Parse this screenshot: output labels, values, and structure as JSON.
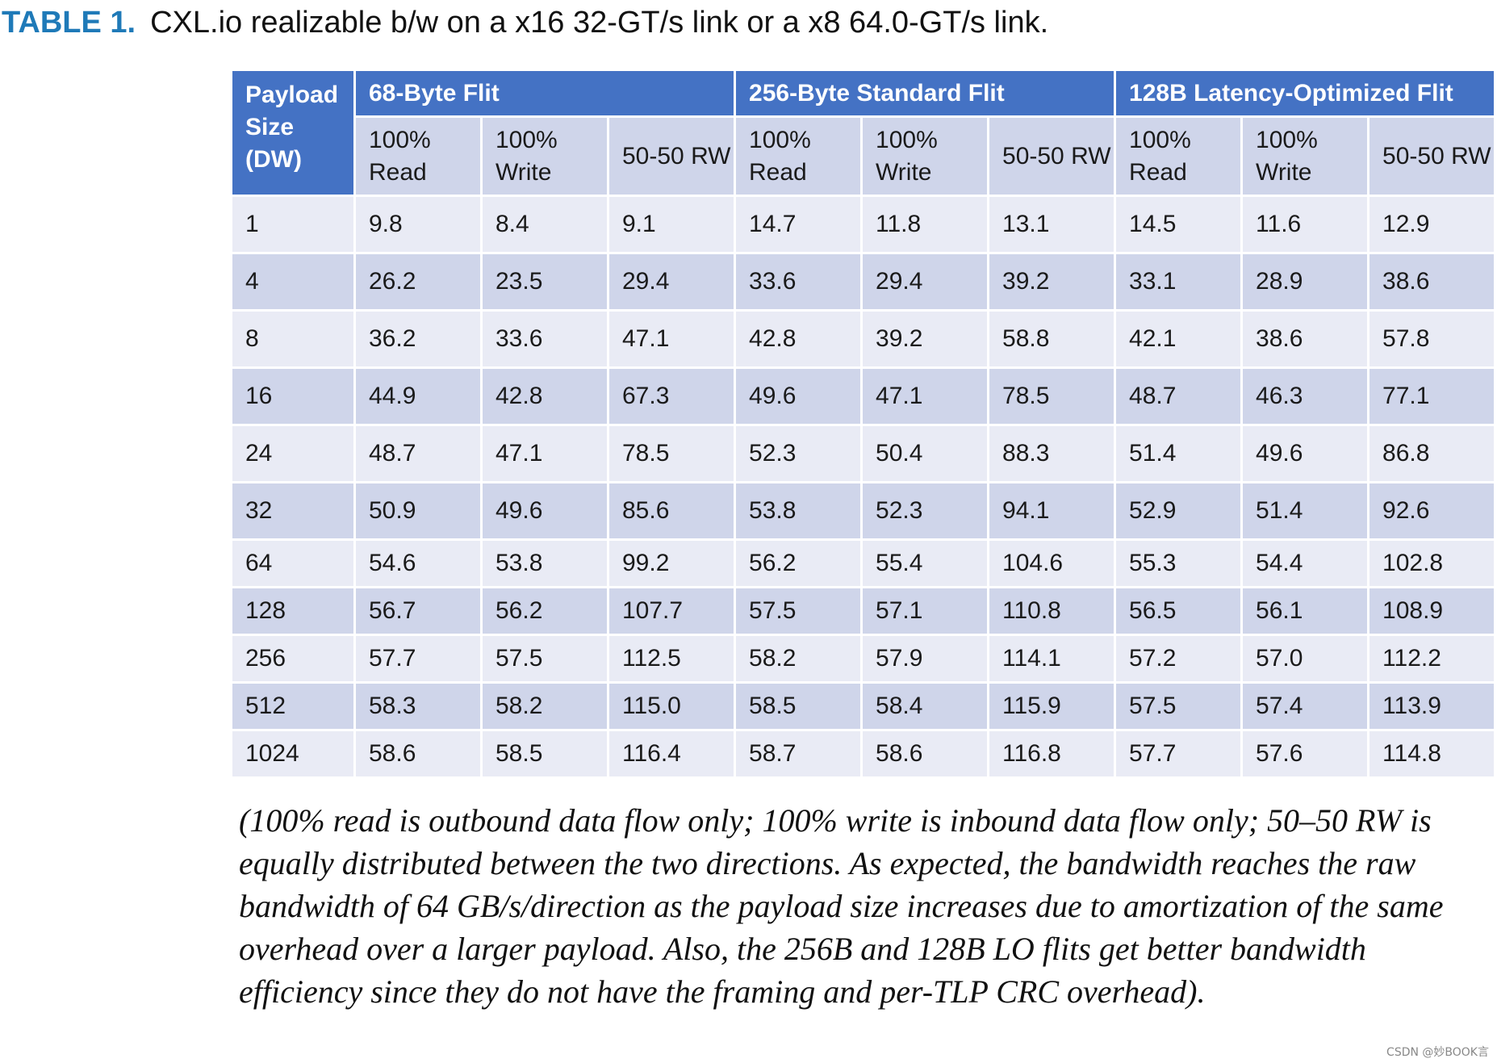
{
  "caption": {
    "label": "TABLE 1.",
    "text": "CXL.io realizable b/w on a x16 32-GT/s link or a x8 64.0-GT/s link."
  },
  "table": {
    "corner_header": "Payload Size (DW)",
    "groups": [
      "68-Byte Flit",
      "256-Byte Standard Flit",
      "128B Latency-Optimized Flit"
    ],
    "subheaders": [
      "100% Read",
      "100% Write",
      "50-50 RW"
    ],
    "rows": [
      [
        "1",
        "9.8",
        "8.4",
        "9.1",
        "14.7",
        "11.8",
        "13.1",
        "14.5",
        "11.6",
        "12.9"
      ],
      [
        "4",
        "26.2",
        "23.5",
        "29.4",
        "33.6",
        "29.4",
        "39.2",
        "33.1",
        "28.9",
        "38.6"
      ],
      [
        "8",
        "36.2",
        "33.6",
        "47.1",
        "42.8",
        "39.2",
        "58.8",
        "42.1",
        "38.6",
        "57.8"
      ],
      [
        "16",
        "44.9",
        "42.8",
        "67.3",
        "49.6",
        "47.1",
        "78.5",
        "48.7",
        "46.3",
        "77.1"
      ],
      [
        "24",
        "48.7",
        "47.1",
        "78.5",
        "52.3",
        "50.4",
        "88.3",
        "51.4",
        "49.6",
        "86.8"
      ],
      [
        "32",
        "50.9",
        "49.6",
        "85.6",
        "53.8",
        "52.3",
        "94.1",
        "52.9",
        "51.4",
        "92.6"
      ],
      [
        "64",
        "54.6",
        "53.8",
        "99.2",
        "56.2",
        "55.4",
        "104.6",
        "55.3",
        "54.4",
        "102.8"
      ],
      [
        "128",
        "56.7",
        "56.2",
        "107.7",
        "57.5",
        "57.1",
        "110.8",
        "56.5",
        "56.1",
        "108.9"
      ],
      [
        "256",
        "57.7",
        "57.5",
        "112.5",
        "58.2",
        "57.9",
        "114.1",
        "57.2",
        "57.0",
        "112.2"
      ],
      [
        "512",
        "58.3",
        "58.2",
        "115.0",
        "58.5",
        "58.4",
        "115.9",
        "57.5",
        "57.4",
        "113.9"
      ],
      [
        "1024",
        "58.6",
        "58.5",
        "116.4",
        "58.7",
        "58.6",
        "116.8",
        "57.7",
        "57.6",
        "114.8"
      ]
    ]
  },
  "note": "(100% read is outbound data flow only; 100% write is inbound data flow only; 50–50 RW is equally distributed between the two directions. As expected, the bandwidth reaches the raw bandwidth of 64 GB/s/direction as the payload size increases due to amortization of the same overhead over a larger payload. Also, the 256B and 128B LO flits get better bandwidth efficiency since they do not have the framing and per-TLP CRC overhead).",
  "watermark": "CSDN @妙BOOK言",
  "colors": {
    "caption_label": "#1f7ab8",
    "header_bg": "#4472c4",
    "row_light": "#e9ebf5",
    "row_dark": "#cfd5ea"
  }
}
